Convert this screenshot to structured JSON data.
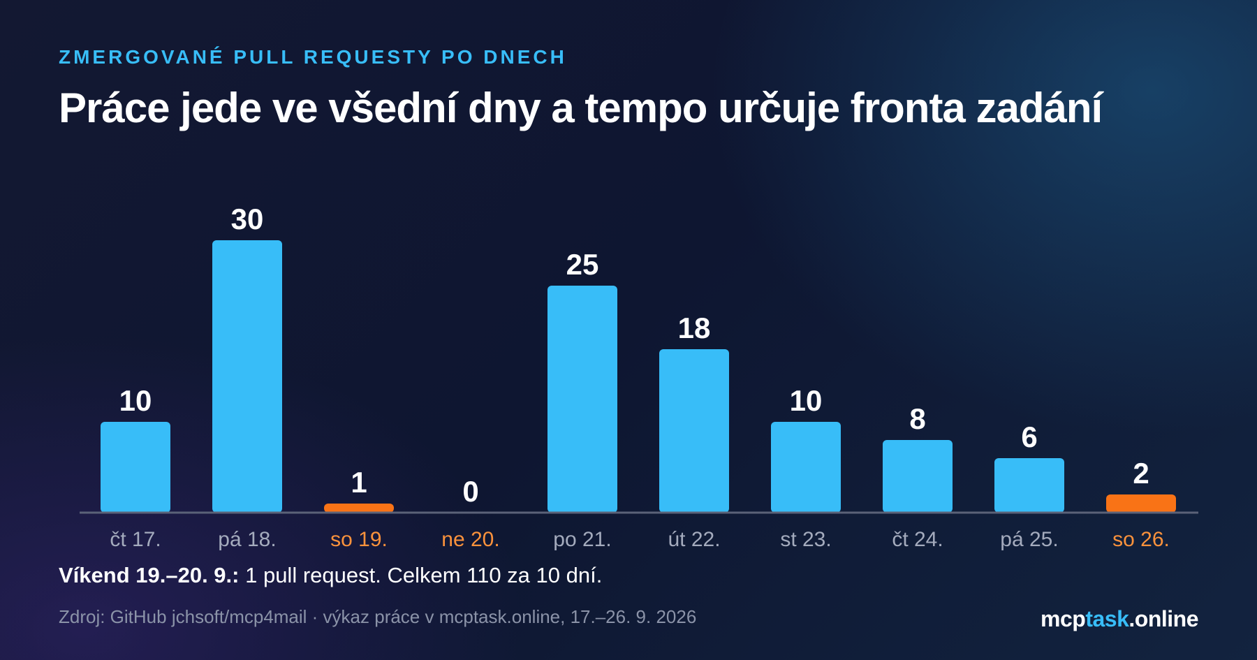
{
  "header": {
    "kicker": "ZMERGOVANÉ PULL REQUESTY PO DNECH",
    "title": "Práce jede ve všední dny a tempo určuje fronta zadání"
  },
  "chart_data": {
    "type": "bar",
    "categories": [
      "čt 17.",
      "pá 18.",
      "so 19.",
      "ne 20.",
      "po 21.",
      "út 22.",
      "st 23.",
      "čt 24.",
      "pá 25.",
      "so 26."
    ],
    "values": [
      10,
      30,
      1,
      0,
      25,
      18,
      10,
      8,
      6,
      2
    ],
    "weekend": [
      false,
      false,
      true,
      true,
      false,
      false,
      false,
      false,
      false,
      true
    ],
    "ylim": [
      0,
      30
    ],
    "grid": false,
    "xlabel": "",
    "ylabel": "",
    "colors": {
      "weekday_bar": "#38bdf8",
      "weekend_bar": "#f97316",
      "weekday_label": "#a4abbd",
      "weekend_label": "#fb923c",
      "baseline": "#5b6278"
    }
  },
  "footer": {
    "note_bold": "Víkend 19.–20. 9.:",
    "note_text": " 1 pull request. Celkem 110 za 10 dní.",
    "source": "Zdroj: GitHub jchsoft/mcp4mail · výkaz práce v mcptask.online, 17.–26. 9. 2026",
    "brand_prefix": "mcp",
    "brand_accent": "task",
    "brand_suffix": ".online"
  }
}
